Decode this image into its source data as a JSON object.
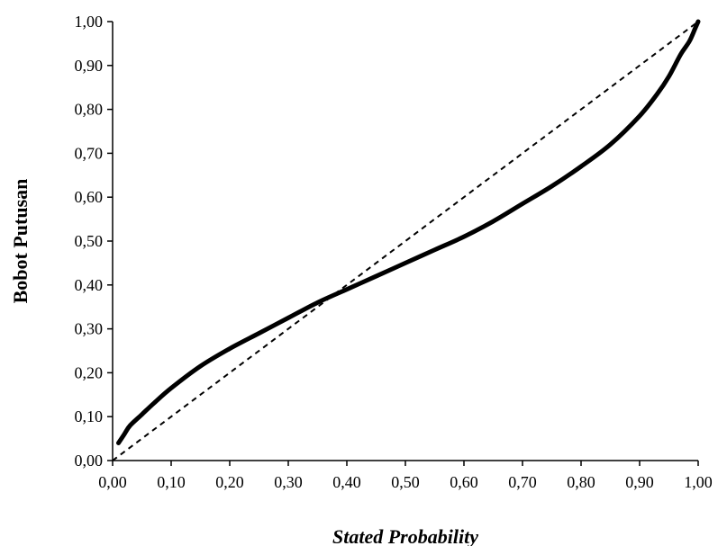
{
  "chart_data": {
    "type": "line",
    "title": "",
    "xlabel": "Stated Probability",
    "ylabel": "Bobot Putusan",
    "xlim": [
      0,
      1
    ],
    "ylim": [
      0,
      1
    ],
    "grid": false,
    "legend": "none",
    "x_ticks": [
      "0,00",
      "0,10",
      "0,20",
      "0,30",
      "0,40",
      "0,50",
      "0,60",
      "0,70",
      "0,80",
      "0,90",
      "1,00"
    ],
    "y_ticks": [
      "0,00",
      "0,10",
      "0,20",
      "0,30",
      "0,40",
      "0,50",
      "0,60",
      "0,70",
      "0,80",
      "0,90",
      "1,00"
    ],
    "series": [
      {
        "style": "solid-thick",
        "color": "#000000",
        "points": [
          [
            0.01,
            0.04
          ],
          [
            0.02,
            0.06
          ],
          [
            0.03,
            0.08
          ],
          [
            0.05,
            0.105
          ],
          [
            0.07,
            0.13
          ],
          [
            0.1,
            0.165
          ],
          [
            0.15,
            0.215
          ],
          [
            0.2,
            0.255
          ],
          [
            0.25,
            0.29
          ],
          [
            0.3,
            0.325
          ],
          [
            0.35,
            0.36
          ],
          [
            0.4,
            0.39
          ],
          [
            0.45,
            0.42
          ],
          [
            0.5,
            0.45
          ],
          [
            0.55,
            0.48
          ],
          [
            0.6,
            0.51
          ],
          [
            0.65,
            0.545
          ],
          [
            0.7,
            0.585
          ],
          [
            0.75,
            0.625
          ],
          [
            0.8,
            0.67
          ],
          [
            0.85,
            0.72
          ],
          [
            0.9,
            0.785
          ],
          [
            0.93,
            0.835
          ],
          [
            0.95,
            0.875
          ],
          [
            0.97,
            0.925
          ],
          [
            0.985,
            0.955
          ],
          [
            0.995,
            0.985
          ],
          [
            1.0,
            1.0
          ]
        ]
      },
      {
        "style": "dashed",
        "color": "#000000",
        "points": [
          [
            0,
            0
          ],
          [
            1,
            1
          ]
        ]
      }
    ]
  }
}
